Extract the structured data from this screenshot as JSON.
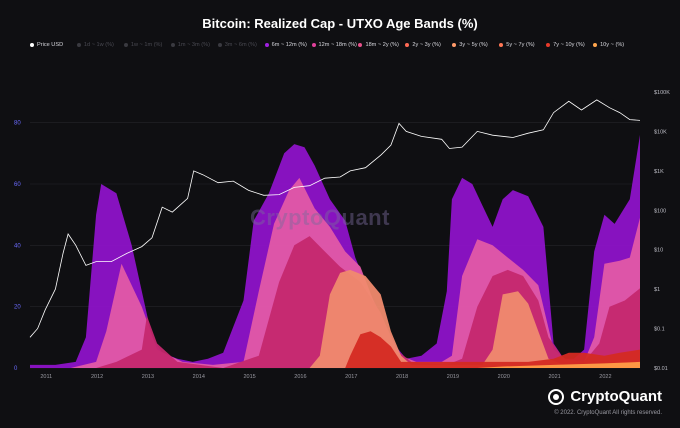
{
  "chart_data": {
    "type": "area",
    "title": "Bitcoin: Realized Cap - UTXO Age Bands (%)",
    "watermark": "CryptoQuant",
    "legend": [
      {
        "name": "Price USD",
        "color": "#ffffff",
        "active": true
      },
      {
        "name": "1d ~ 1w (%)",
        "color": "#555555",
        "active": false
      },
      {
        "name": "1w ~ 1m (%)",
        "color": "#555555",
        "active": false
      },
      {
        "name": "1m ~ 3m (%)",
        "color": "#555555",
        "active": false
      },
      {
        "name": "3m ~ 6m (%)",
        "color": "#555555",
        "active": false
      },
      {
        "name": "6m ~ 12m (%)",
        "color": "#a020e0",
        "active": true
      },
      {
        "name": "12m ~ 18m (%)",
        "color": "#e0409a",
        "active": true
      },
      {
        "name": "18m ~ 2y (%)",
        "color": "#e8508a",
        "active": true
      },
      {
        "name": "2y ~ 3y (%)",
        "color": "#ff6a55",
        "active": true
      },
      {
        "name": "3y ~ 5y (%)",
        "color": "#ff9a6a",
        "active": true
      },
      {
        "name": "5y ~ 7y (%)",
        "color": "#ff7755",
        "active": true
      },
      {
        "name": "7y ~ 10y (%)",
        "color": "#e83a2a",
        "active": true
      },
      {
        "name": "10y ~ (%)",
        "color": "#ffa64d",
        "active": true
      }
    ],
    "x_ticks": [
      "2011",
      "2012",
      "2013",
      "2014",
      "2015",
      "2016",
      "2017",
      "2018",
      "2019",
      "2020",
      "2021",
      "2022"
    ],
    "y_left_ticks": [
      "0",
      "20",
      "40",
      "60",
      "80"
    ],
    "y_left_range": [
      0,
      90
    ],
    "y_right_ticks": [
      "$0.01",
      "$0.1",
      "$1",
      "$10",
      "$100",
      "$1K",
      "$10K",
      "$100K"
    ],
    "y_right_log_range": [
      0.01,
      100000
    ],
    "x_range": [
      2010.7,
      2022.7
    ],
    "grid": true,
    "series": [
      {
        "name": "6m ~ 12m (%)",
        "color": "#8e13c9",
        "x": [
          2010.7,
          2011.2,
          2011.6,
          2011.8,
          2012.0,
          2012.1,
          2012.4,
          2012.7,
          2012.9,
          2013.1,
          2013.3,
          2013.6,
          2013.9,
          2014.2,
          2014.5,
          2014.9,
          2015.1,
          2015.4,
          2015.7,
          2015.9,
          2016.1,
          2016.3,
          2016.6,
          2016.9,
          2017.1,
          2017.4,
          2017.7,
          2017.9,
          2018.1,
          2018.4,
          2018.7,
          2018.9,
          2019.0,
          2019.2,
          2019.4,
          2019.6,
          2019.8,
          2020.0,
          2020.2,
          2020.5,
          2020.8,
          2021.0,
          2021.2,
          2021.4,
          2021.6,
          2021.8,
          2022.0,
          2022.2,
          2022.5,
          2022.7
        ],
        "values": [
          1,
          1,
          2,
          10,
          50,
          60,
          57,
          40,
          25,
          10,
          5,
          3,
          2,
          3,
          5,
          22,
          48,
          57,
          70,
          73,
          72,
          66,
          55,
          48,
          36,
          24,
          14,
          7,
          3,
          4,
          8,
          25,
          55,
          62,
          60,
          53,
          46,
          55,
          58,
          56,
          46,
          8,
          3,
          3,
          6,
          38,
          50,
          47,
          55,
          76
        ]
      },
      {
        "name": "12m ~ 18m (%)",
        "color": "#e15aa6",
        "x": [
          2010.7,
          2011.5,
          2012.0,
          2012.2,
          2012.5,
          2012.9,
          2013.2,
          2013.7,
          2014.3,
          2014.9,
          2015.2,
          2015.5,
          2015.8,
          2016.0,
          2016.3,
          2016.6,
          2016.9,
          2017.2,
          2017.5,
          2017.8,
          2018.0,
          2018.3,
          2018.8,
          2019.0,
          2019.2,
          2019.5,
          2019.8,
          2020.1,
          2020.4,
          2020.7,
          2021.0,
          2021.3,
          2021.6,
          2021.8,
          2022.0,
          2022.3,
          2022.5,
          2022.7
        ],
        "values": [
          0,
          0,
          2,
          12,
          34,
          20,
          6,
          2,
          1,
          2,
          25,
          47,
          58,
          62,
          52,
          46,
          38,
          33,
          20,
          8,
          4,
          2,
          2,
          4,
          30,
          42,
          40,
          36,
          32,
          27,
          6,
          2,
          2,
          10,
          34,
          35,
          36,
          49
        ]
      },
      {
        "name": "18m ~ 2y (%)",
        "color": "#c4286e",
        "x": [
          2010.7,
          2012.0,
          2012.4,
          2012.9,
          2013.0,
          2013.2,
          2013.6,
          2014.5,
          2015.2,
          2015.6,
          2015.9,
          2016.2,
          2016.5,
          2016.8,
          2017.2,
          2017.6,
          2017.9,
          2018.2,
          2018.9,
          2019.2,
          2019.5,
          2019.8,
          2020.1,
          2020.4,
          2020.7,
          2020.9,
          2021.2,
          2021.6,
          2021.9,
          2022.1,
          2022.4,
          2022.7
        ],
        "values": [
          0,
          0,
          2,
          6,
          17,
          8,
          2,
          0,
          4,
          28,
          40,
          43,
          38,
          33,
          28,
          18,
          6,
          2,
          1,
          3,
          20,
          30,
          32,
          30,
          22,
          10,
          3,
          2,
          8,
          20,
          22,
          26
        ]
      },
      {
        "name": "3y ~ 5y (%)",
        "color": "#f08a6e",
        "x": [
          2010.7,
          2016.2,
          2016.4,
          2016.6,
          2016.8,
          2017.0,
          2017.3,
          2017.6,
          2017.8,
          2018.0,
          2018.2,
          2019.6,
          2019.8,
          2020.0,
          2020.3,
          2020.5,
          2020.7,
          2020.9,
          2021.2,
          2022.7
        ],
        "values": [
          0,
          0,
          4,
          24,
          31,
          32,
          30,
          24,
          12,
          4,
          1,
          1,
          6,
          24,
          25,
          21,
          12,
          3,
          1,
          2
        ]
      },
      {
        "name": "7y ~ 10y (%)",
        "color": "#d42a22",
        "x": [
          2010.7,
          2016.9,
          2017.0,
          2017.2,
          2017.4,
          2017.6,
          2017.8,
          2018.0,
          2020.0,
          2020.5,
          2021.0,
          2021.3,
          2021.6,
          2022.0,
          2022.3,
          2022.7
        ],
        "values": [
          0,
          0,
          4,
          11,
          12,
          10,
          7,
          2,
          2,
          2,
          3,
          5,
          5,
          4,
          5,
          6
        ]
      },
      {
        "name": "10y ~ (%)",
        "color": "#ff9d46",
        "x": [
          2010.7,
          2019.5,
          2020.0,
          2021.0,
          2022.0,
          2022.7
        ],
        "values": [
          0,
          0,
          0.5,
          1,
          1.5,
          2
        ]
      },
      {
        "name": "Price USD",
        "color": "#ffffff",
        "axis": "right-log",
        "x": [
          2010.7,
          2010.85,
          2011.0,
          2011.2,
          2011.35,
          2011.45,
          2011.6,
          2011.8,
          2012.0,
          2012.3,
          2012.6,
          2012.9,
          2013.1,
          2013.3,
          2013.5,
          2013.8,
          2013.92,
          2014.1,
          2014.4,
          2014.7,
          2015.0,
          2015.3,
          2015.6,
          2015.9,
          2016.2,
          2016.5,
          2016.8,
          2017.0,
          2017.3,
          2017.6,
          2017.8,
          2017.96,
          2018.1,
          2018.4,
          2018.8,
          2018.95,
          2019.2,
          2019.5,
          2019.8,
          2020.2,
          2020.5,
          2020.8,
          2021.0,
          2021.3,
          2021.55,
          2021.85,
          2022.1,
          2022.3,
          2022.5,
          2022.7
        ],
        "values": [
          0.06,
          0.1,
          0.3,
          1,
          8,
          25,
          13,
          4,
          5,
          5,
          8,
          12,
          20,
          120,
          90,
          200,
          1000,
          800,
          500,
          550,
          320,
          240,
          250,
          380,
          420,
          650,
          700,
          1000,
          1200,
          2500,
          4500,
          16000,
          10000,
          7500,
          6300,
          3700,
          4000,
          10000,
          8000,
          7000,
          9000,
          11000,
          30000,
          58000,
          35000,
          63000,
          40000,
          30000,
          20000,
          19000
        ]
      }
    ]
  },
  "brand": {
    "name": "CryptoQuant",
    "copyright": "© 2022. CryptoQuant All rights reserved."
  }
}
